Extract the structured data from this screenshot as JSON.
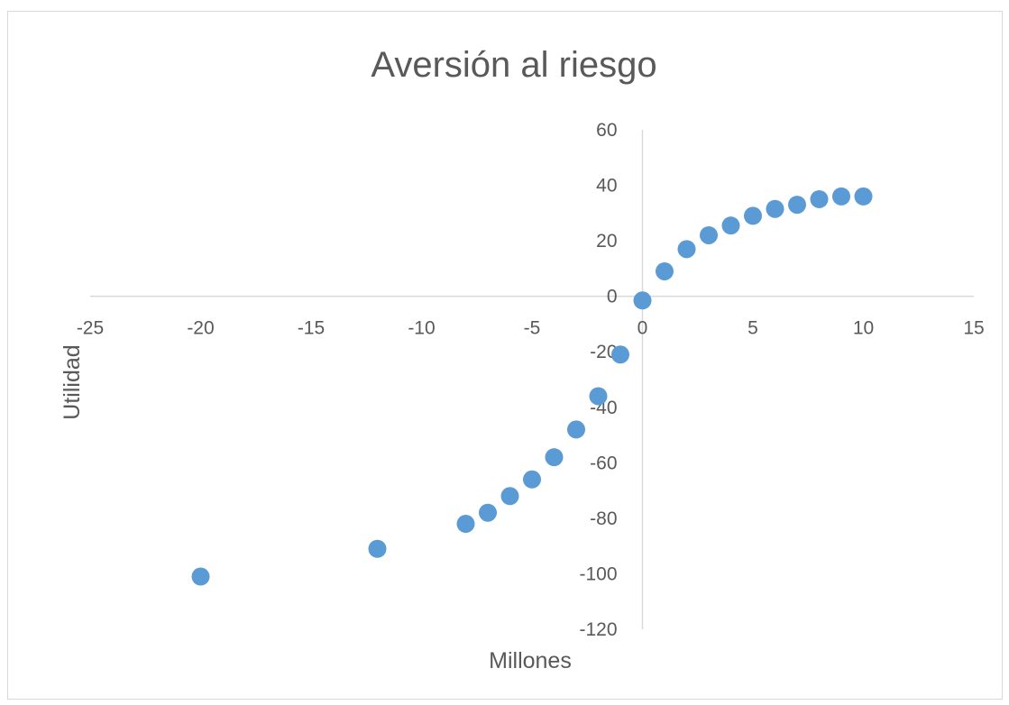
{
  "chart_data": {
    "type": "scatter",
    "title": "Aversión al riesgo",
    "xlabel": "Millones",
    "ylabel": "Utilidad",
    "xlim": [
      -25,
      15
    ],
    "ylim": [
      -120,
      60
    ],
    "x_ticks": [
      -25,
      -20,
      -15,
      -10,
      -5,
      0,
      5,
      10,
      15
    ],
    "y_ticks": [
      60,
      40,
      20,
      0,
      -20,
      -40,
      -60,
      -80,
      -100,
      -120
    ],
    "grid": false,
    "legend": "none",
    "marker_color": "#5b9bd5",
    "series": [
      {
        "points": [
          {
            "x": -20,
            "y": -101
          },
          {
            "x": -12,
            "y": -91
          },
          {
            "x": -8,
            "y": -82
          },
          {
            "x": -7,
            "y": -78
          },
          {
            "x": -6,
            "y": -72
          },
          {
            "x": -5,
            "y": -66
          },
          {
            "x": -4,
            "y": -58
          },
          {
            "x": -3,
            "y": -48
          },
          {
            "x": -2,
            "y": -36
          },
          {
            "x": -1,
            "y": -21
          },
          {
            "x": 0,
            "y": -1.5
          },
          {
            "x": 1,
            "y": 9
          },
          {
            "x": 2,
            "y": 17
          },
          {
            "x": 3,
            "y": 22
          },
          {
            "x": 4,
            "y": 25.5
          },
          {
            "x": 5,
            "y": 29
          },
          {
            "x": 6,
            "y": 31.5
          },
          {
            "x": 7,
            "y": 33
          },
          {
            "x": 8,
            "y": 35
          },
          {
            "x": 9,
            "y": 36
          },
          {
            "x": 10,
            "y": 36
          }
        ]
      }
    ]
  }
}
